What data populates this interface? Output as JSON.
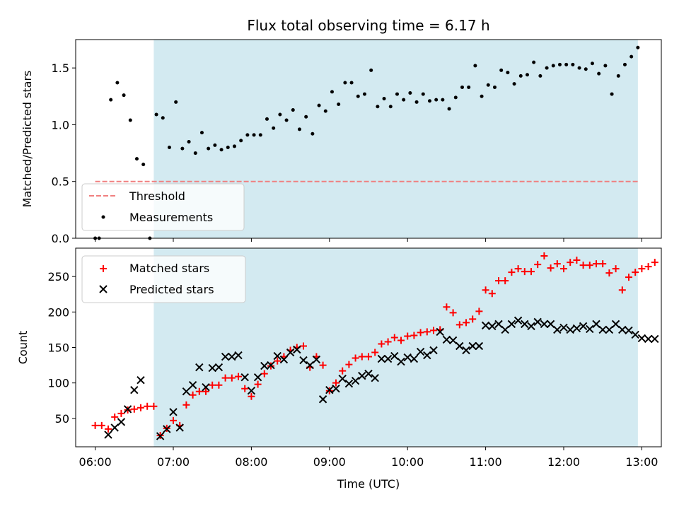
{
  "chart_data": [
    {
      "type": "scatter",
      "title": "Flux total observing time = 6.17 h",
      "ylabel": "Matched/Predicted stars",
      "ylim": [
        0,
        1.75
      ],
      "yticks": [
        "0.0",
        "0.5",
        "1.0",
        "1.5"
      ],
      "xlim": [
        "05:45",
        "13:15"
      ],
      "shaded_span": {
        "start": "06:45",
        "end": "12:57",
        "color": "#d3eaf1"
      },
      "threshold": {
        "name": "Threshold",
        "value": 0.5,
        "start": "06:00",
        "end": "12:57",
        "color": "#f08080"
      },
      "legend": {
        "position": "lower left",
        "entries": [
          "Threshold",
          "Measurements"
        ]
      },
      "series": [
        {
          "name": "Measurements",
          "marker": "dot",
          "color": "#000000",
          "points": [
            [
              "06:00",
              0.0
            ],
            [
              "06:03",
              0.0
            ],
            [
              "06:12",
              1.22
            ],
            [
              "06:17",
              1.37
            ],
            [
              "06:22",
              1.26
            ],
            [
              "06:27",
              1.04
            ],
            [
              "06:32",
              0.7
            ],
            [
              "06:37",
              0.65
            ],
            [
              "06:42",
              0.0
            ],
            [
              "06:47",
              1.09
            ],
            [
              "06:52",
              1.06
            ],
            [
              "06:57",
              0.8
            ],
            [
              "07:02",
              1.2
            ],
            [
              "07:07",
              0.79
            ],
            [
              "07:12",
              0.85
            ],
            [
              "07:17",
              0.75
            ],
            [
              "07:22",
              0.93
            ],
            [
              "07:27",
              0.79
            ],
            [
              "07:32",
              0.82
            ],
            [
              "07:37",
              0.78
            ],
            [
              "07:42",
              0.8
            ],
            [
              "07:47",
              0.81
            ],
            [
              "07:52",
              0.86
            ],
            [
              "07:57",
              0.91
            ],
            [
              "08:02",
              0.91
            ],
            [
              "08:07",
              0.91
            ],
            [
              "08:12",
              1.05
            ],
            [
              "08:17",
              0.97
            ],
            [
              "08:22",
              1.09
            ],
            [
              "08:27",
              1.04
            ],
            [
              "08:32",
              1.13
            ],
            [
              "08:37",
              0.96
            ],
            [
              "08:42",
              1.07
            ],
            [
              "08:47",
              0.92
            ],
            [
              "08:52",
              1.17
            ],
            [
              "08:57",
              1.12
            ],
            [
              "09:02",
              1.29
            ],
            [
              "09:07",
              1.18
            ],
            [
              "09:12",
              1.37
            ],
            [
              "09:17",
              1.37
            ],
            [
              "09:22",
              1.25
            ],
            [
              "09:27",
              1.27
            ],
            [
              "09:32",
              1.48
            ],
            [
              "09:37",
              1.16
            ],
            [
              "09:42",
              1.23
            ],
            [
              "09:47",
              1.16
            ],
            [
              "09:52",
              1.27
            ],
            [
              "09:57",
              1.22
            ],
            [
              "10:02",
              1.28
            ],
            [
              "10:07",
              1.2
            ],
            [
              "10:12",
              1.27
            ],
            [
              "10:17",
              1.21
            ],
            [
              "10:22",
              1.22
            ],
            [
              "10:27",
              1.22
            ],
            [
              "10:32",
              1.14
            ],
            [
              "10:37",
              1.24
            ],
            [
              "10:42",
              1.33
            ],
            [
              "10:47",
              1.33
            ],
            [
              "10:52",
              1.52
            ],
            [
              "10:57",
              1.25
            ],
            [
              "11:02",
              1.35
            ],
            [
              "11:07",
              1.33
            ],
            [
              "11:12",
              1.48
            ],
            [
              "11:17",
              1.46
            ],
            [
              "11:22",
              1.36
            ],
            [
              "11:27",
              1.43
            ],
            [
              "11:32",
              1.44
            ],
            [
              "11:37",
              1.55
            ],
            [
              "11:42",
              1.43
            ],
            [
              "11:47",
              1.5
            ],
            [
              "11:52",
              1.52
            ],
            [
              "11:57",
              1.53
            ],
            [
              "12:02",
              1.53
            ],
            [
              "12:07",
              1.53
            ],
            [
              "12:12",
              1.5
            ],
            [
              "12:17",
              1.49
            ],
            [
              "12:22",
              1.54
            ],
            [
              "12:27",
              1.45
            ],
            [
              "12:32",
              1.52
            ],
            [
              "12:37",
              1.27
            ],
            [
              "12:42",
              1.43
            ],
            [
              "12:47",
              1.53
            ],
            [
              "12:52",
              1.6
            ],
            [
              "12:57",
              1.68
            ]
          ]
        }
      ]
    },
    {
      "type": "scatter",
      "xlabel": "Time (UTC)",
      "ylabel": "Count",
      "ylim": [
        10,
        290
      ],
      "yticks": [
        50,
        100,
        150,
        200,
        250
      ],
      "xlim": [
        "05:45",
        "13:15"
      ],
      "xticks": [
        "06:00",
        "07:00",
        "08:00",
        "09:00",
        "10:00",
        "11:00",
        "12:00",
        "13:00"
      ],
      "shaded_span": {
        "start": "06:45",
        "end": "12:57",
        "color": "#d3eaf1"
      },
      "legend": {
        "position": "upper left",
        "entries": [
          "Matched stars",
          "Predicted stars"
        ]
      },
      "series": [
        {
          "name": "Matched stars",
          "marker": "plus",
          "color": "#ff0000",
          "points": [
            [
              "06:00",
              40
            ],
            [
              "06:05",
              40
            ],
            [
              "06:10",
              35
            ],
            [
              "06:15",
              52
            ],
            [
              "06:20",
              57
            ],
            [
              "06:25",
              62
            ],
            [
              "06:30",
              63
            ],
            [
              "06:35",
              65
            ],
            [
              "06:40",
              67
            ],
            [
              "06:45",
              67
            ],
            [
              "06:50",
              26
            ],
            [
              "06:55",
              36
            ],
            [
              "07:00",
              47
            ],
            [
              "07:05",
              40
            ],
            [
              "07:10",
              69
            ],
            [
              "07:15",
              83
            ],
            [
              "07:20",
              88
            ],
            [
              "07:25",
              88
            ],
            [
              "07:30",
              97
            ],
            [
              "07:35",
              97
            ],
            [
              "07:40",
              107
            ],
            [
              "07:45",
              107
            ],
            [
              "07:50",
              109
            ],
            [
              "07:55",
              92
            ],
            [
              "08:00",
              81
            ],
            [
              "08:05",
              98
            ],
            [
              "08:10",
              113
            ],
            [
              "08:15",
              124
            ],
            [
              "08:20",
              131
            ],
            [
              "08:25",
              137
            ],
            [
              "08:30",
              146
            ],
            [
              "08:35",
              150
            ],
            [
              "08:40",
              152
            ],
            [
              "08:45",
              122
            ],
            [
              "08:50",
              137
            ],
            [
              "08:55",
              125
            ],
            [
              "09:00",
              89
            ],
            [
              "09:05",
              100
            ],
            [
              "09:10",
              117
            ],
            [
              "09:15",
              126
            ],
            [
              "09:20",
              135
            ],
            [
              "09:25",
              137
            ],
            [
              "09:30",
              137
            ],
            [
              "09:35",
              143
            ],
            [
              "09:40",
              155
            ],
            [
              "09:45",
              158
            ],
            [
              "09:50",
              164
            ],
            [
              "09:55",
              160
            ],
            [
              "10:00",
              166
            ],
            [
              "10:05",
              167
            ],
            [
              "10:10",
              171
            ],
            [
              "10:15",
              172
            ],
            [
              "10:20",
              174
            ],
            [
              "10:25",
              175
            ],
            [
              "10:30",
              207
            ],
            [
              "10:35",
              199
            ],
            [
              "10:40",
              182
            ],
            [
              "10:45",
              185
            ],
            [
              "10:50",
              190
            ],
            [
              "10:55",
              201
            ],
            [
              "11:00",
              231
            ],
            [
              "11:05",
              226
            ],
            [
              "11:10",
              244
            ],
            [
              "11:15",
              244
            ],
            [
              "11:20",
              256
            ],
            [
              "11:25",
              261
            ],
            [
              "11:30",
              257
            ],
            [
              "11:35",
              257
            ],
            [
              "11:40",
              267
            ],
            [
              "11:45",
              279
            ],
            [
              "11:50",
              262
            ],
            [
              "11:55",
              268
            ],
            [
              "12:00",
              261
            ],
            [
              "12:05",
              270
            ],
            [
              "12:10",
              273
            ],
            [
              "12:15",
              266
            ],
            [
              "12:20",
              266
            ],
            [
              "12:25",
              268
            ],
            [
              "12:30",
              268
            ],
            [
              "12:35",
              255
            ],
            [
              "12:40",
              261
            ],
            [
              "12:45",
              231
            ],
            [
              "12:50",
              249
            ],
            [
              "12:55",
              256
            ],
            [
              "13:00",
              261
            ],
            [
              "13:05",
              264
            ],
            [
              "13:10",
              270
            ]
          ]
        },
        {
          "name": "Predicted stars",
          "marker": "x",
          "color": "#000000",
          "points": [
            [
              "06:10",
              27
            ],
            [
              "06:15",
              37
            ],
            [
              "06:20",
              45
            ],
            [
              "06:25",
              63
            ],
            [
              "06:30",
              90
            ],
            [
              "06:35",
              104
            ],
            [
              "06:50",
              25
            ],
            [
              "06:55",
              35
            ],
            [
              "07:00",
              59
            ],
            [
              "07:05",
              37
            ],
            [
              "07:10",
              88
            ],
            [
              "07:15",
              97
            ],
            [
              "07:20",
              122
            ],
            [
              "07:25",
              94
            ],
            [
              "07:30",
              121
            ],
            [
              "07:35",
              122
            ],
            [
              "07:40",
              137
            ],
            [
              "07:45",
              137
            ],
            [
              "07:50",
              139
            ],
            [
              "07:55",
              108
            ],
            [
              "08:00",
              89
            ],
            [
              "08:05",
              108
            ],
            [
              "08:10",
              124
            ],
            [
              "08:15",
              125
            ],
            [
              "08:20",
              138
            ],
            [
              "08:25",
              133
            ],
            [
              "08:30",
              143
            ],
            [
              "08:35",
              147
            ],
            [
              "08:40",
              132
            ],
            [
              "08:45",
              125
            ],
            [
              "08:50",
              133
            ],
            [
              "08:55",
              77
            ],
            [
              "09:00",
              90
            ],
            [
              "09:05",
              92
            ],
            [
              "09:10",
              106
            ],
            [
              "09:15",
              99
            ],
            [
              "09:20",
              103
            ],
            [
              "09:25",
              110
            ],
            [
              "09:30",
              113
            ],
            [
              "09:35",
              107
            ],
            [
              "09:40",
              134
            ],
            [
              "09:45",
              134
            ],
            [
              "09:50",
              138
            ],
            [
              "09:55",
              130
            ],
            [
              "10:00",
              136
            ],
            [
              "10:05",
              134
            ],
            [
              "10:10",
              144
            ],
            [
              "10:15",
              139
            ],
            [
              "10:20",
              146
            ],
            [
              "10:25",
              172
            ],
            [
              "10:30",
              161
            ],
            [
              "10:35",
              160
            ],
            [
              "10:40",
              152
            ],
            [
              "10:45",
              146
            ],
            [
              "10:50",
              152
            ],
            [
              "10:55",
              152
            ],
            [
              "11:00",
              181
            ],
            [
              "11:05",
              180
            ],
            [
              "11:10",
              183
            ],
            [
              "11:15",
              175
            ],
            [
              "11:20",
              183
            ],
            [
              "11:25",
              188
            ],
            [
              "11:30",
              183
            ],
            [
              "11:35",
              180
            ],
            [
              "11:40",
              186
            ],
            [
              "11:45",
              183
            ],
            [
              "11:50",
              183
            ],
            [
              "11:55",
              175
            ],
            [
              "12:00",
              178
            ],
            [
              "12:05",
              175
            ],
            [
              "12:10",
              177
            ],
            [
              "12:15",
              180
            ],
            [
              "12:20",
              176
            ],
            [
              "12:25",
              183
            ],
            [
              "12:30",
              175
            ],
            [
              "12:35",
              175
            ],
            [
              "12:40",
              183
            ],
            [
              "12:45",
              175
            ],
            [
              "12:50",
              174
            ],
            [
              "12:55",
              168
            ],
            [
              "13:00",
              163
            ],
            [
              "13:05",
              162
            ],
            [
              "13:10",
              162
            ]
          ]
        }
      ]
    }
  ]
}
